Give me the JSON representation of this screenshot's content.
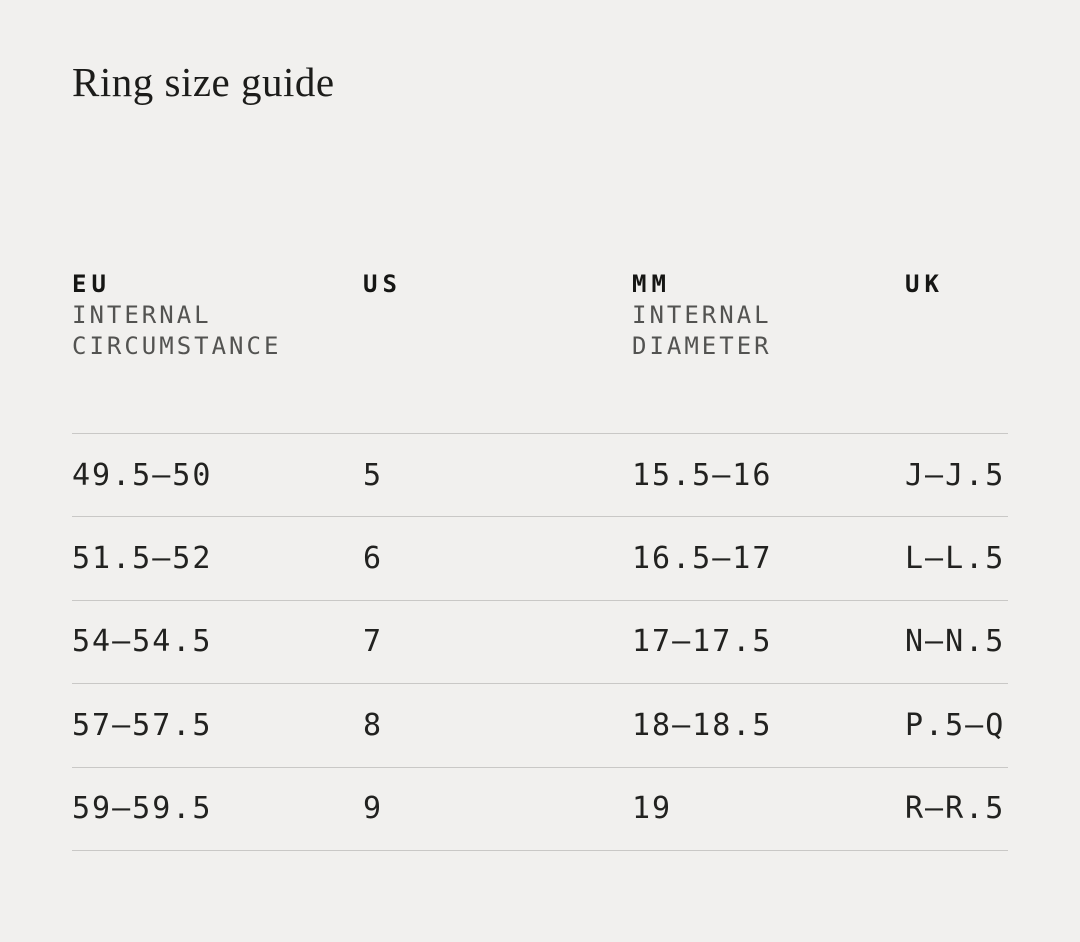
{
  "page": {
    "title": "Ring size guide",
    "background": "#f1f0ee"
  },
  "table": {
    "columns": [
      {
        "code": "EU",
        "sub1": "INTERNAL",
        "sub2": "CIRCUMSTANCE"
      },
      {
        "code": "US",
        "sub1": "",
        "sub2": ""
      },
      {
        "code": "MM",
        "sub1": "INTERNAL",
        "sub2": "DIAMETER"
      },
      {
        "code": "UK",
        "sub1": "",
        "sub2": ""
      }
    ],
    "rows": [
      [
        "49.5—50",
        "5",
        "15.5—16",
        "J—J.5"
      ],
      [
        "51.5—52",
        "6",
        "16.5—17",
        "L—L.5"
      ],
      [
        "54—54.5",
        "7",
        "17—17.5",
        "N—N.5"
      ],
      [
        "57—57.5",
        "8",
        "18—18.5",
        "P.5—Q"
      ],
      [
        "59—59.5",
        "9",
        "19",
        "R—R.5"
      ]
    ],
    "colors": {
      "text": "#1d1d1b",
      "subheader": "#535351",
      "divider": "#c9c8c6"
    }
  }
}
